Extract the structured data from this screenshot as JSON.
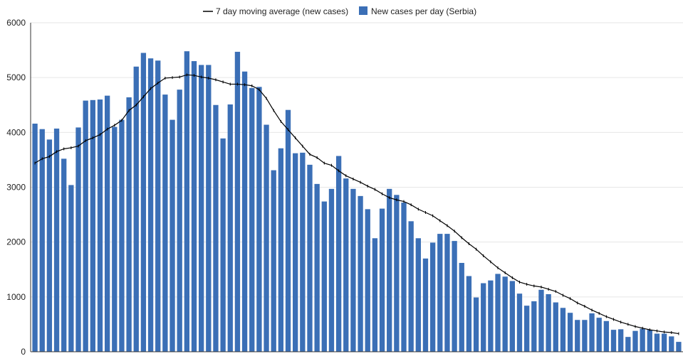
{
  "chart_data": {
    "type": "bar",
    "title": "",
    "xlabel": "",
    "ylabel": "",
    "ylim": [
      0,
      6000
    ],
    "yticks": [
      0,
      1000,
      2000,
      3000,
      4000,
      5000,
      6000
    ],
    "grid": true,
    "legend_position": "top",
    "legend": {
      "line_label": "7 day moving average (new cases)",
      "bar_label": "New cases per day (Serbia)"
    },
    "colors": {
      "bar": "#3b6fb6",
      "line": "#000000",
      "grid": "#e6e6e6",
      "axis": "#333333"
    },
    "series": [
      {
        "name": "New cases per day (Serbia)",
        "type": "bar",
        "values": [
          4160,
          4060,
          3870,
          4070,
          3520,
          3040,
          4090,
          4580,
          4590,
          4600,
          4670,
          4100,
          4230,
          4640,
          5200,
          5450,
          5350,
          5310,
          4690,
          4230,
          4780,
          5480,
          5300,
          5230,
          5230,
          4500,
          3890,
          4510,
          5470,
          5110,
          4810,
          4830,
          4140,
          3310,
          3710,
          4410,
          3620,
          3630,
          3410,
          3060,
          2740,
          2970,
          3570,
          3160,
          2970,
          2840,
          2600,
          2070,
          2610,
          2970,
          2860,
          2720,
          2380,
          2070,
          1700,
          1990,
          2150,
          2150,
          2020,
          1620,
          1380,
          990,
          1250,
          1300,
          1420,
          1370,
          1290,
          1060,
          840,
          920,
          1130,
          1050,
          900,
          800,
          710,
          580,
          580,
          700,
          620,
          560,
          400,
          410,
          270,
          380,
          420,
          400,
          330,
          330,
          280,
          180
        ]
      },
      {
        "name": "7 day moving average (new cases)",
        "type": "line",
        "values": [
          3440,
          3520,
          3560,
          3650,
          3700,
          3720,
          3750,
          3850,
          3900,
          3960,
          4060,
          4130,
          4220,
          4400,
          4500,
          4650,
          4800,
          4900,
          4990,
          5000,
          5010,
          5050,
          5040,
          5010,
          4990,
          4960,
          4920,
          4880,
          4880,
          4870,
          4850,
          4780,
          4620,
          4400,
          4200,
          4050,
          3900,
          3750,
          3600,
          3540,
          3440,
          3400,
          3300,
          3210,
          3150,
          3090,
          3020,
          2960,
          2880,
          2810,
          2770,
          2740,
          2680,
          2600,
          2540,
          2480,
          2390,
          2300,
          2200,
          2080,
          1970,
          1870,
          1750,
          1640,
          1530,
          1440,
          1350,
          1270,
          1230,
          1200,
          1180,
          1140,
          1100,
          1030,
          970,
          890,
          830,
          760,
          700,
          640,
          590,
          540,
          500,
          460,
          430,
          400,
          380,
          360,
          350,
          330
        ]
      }
    ]
  }
}
